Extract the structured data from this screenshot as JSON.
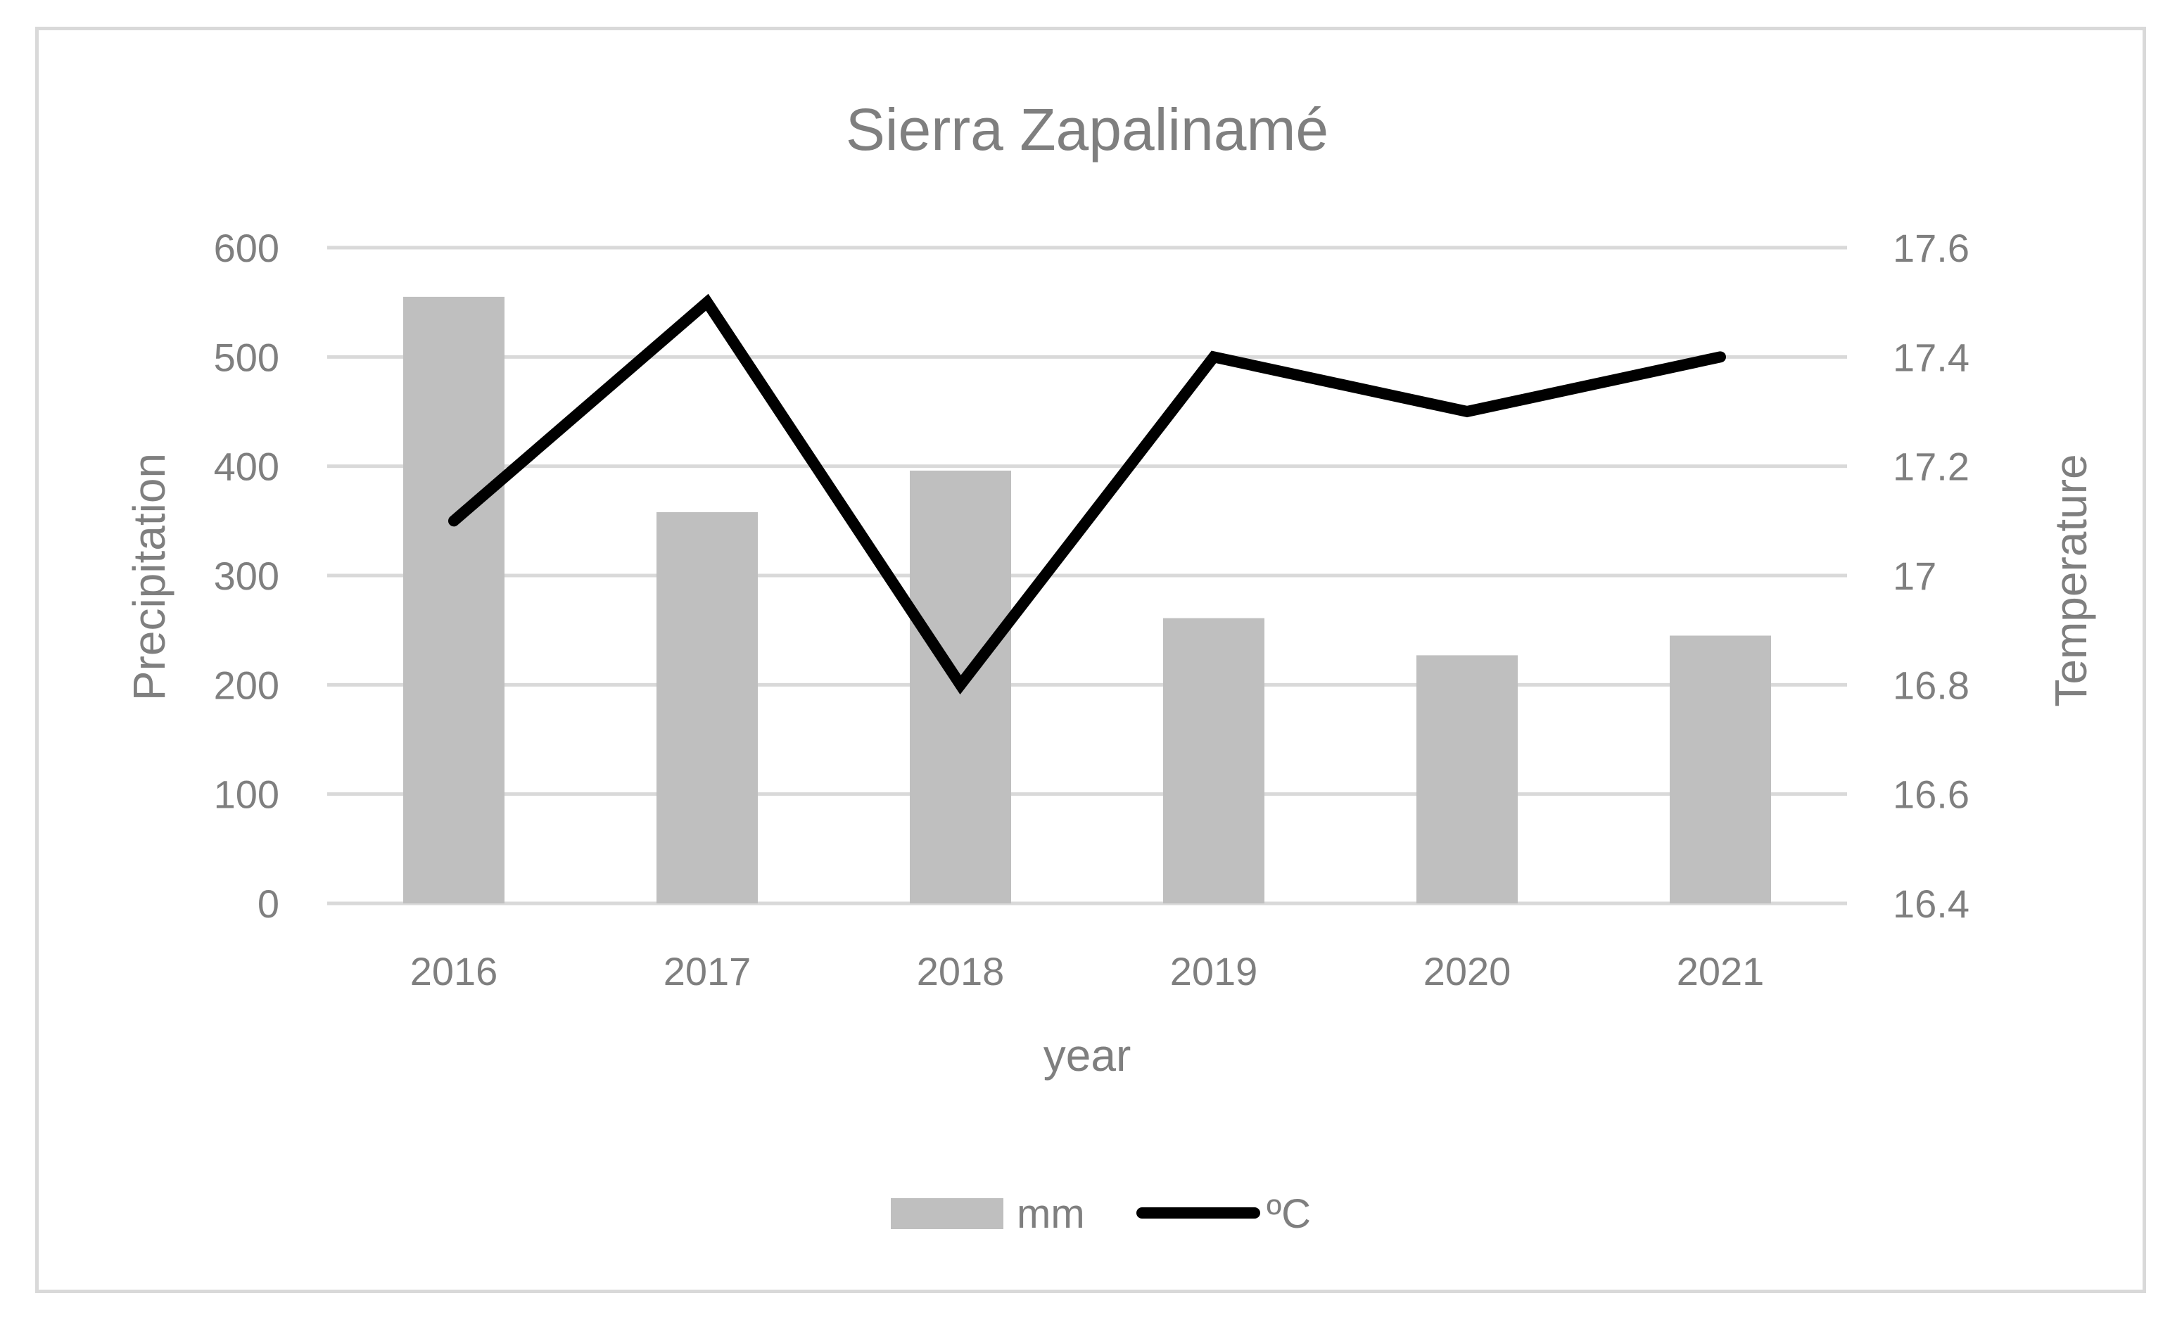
{
  "chart_data": {
    "type": "bar",
    "title": "Sierra Zapalinamé",
    "xlabel": "year",
    "ylabel": "Precipitation",
    "y2label": "Temperature",
    "categories": [
      "2016",
      "2017",
      "2018",
      "2019",
      "2020",
      "2021"
    ],
    "ylim": [
      0,
      600
    ],
    "y_ticks": [
      "0",
      "100",
      "200",
      "300",
      "400",
      "500",
      "600"
    ],
    "y2lim": [
      16.4,
      17.6
    ],
    "y2_ticks": [
      "16.4",
      "16.6",
      "16.8",
      "17",
      "17.2",
      "17.4",
      "17.6"
    ],
    "grid": true,
    "legend_position": "bottom",
    "series": [
      {
        "name": "mm",
        "type": "bar",
        "axis": "left",
        "color": "#bfbfbf",
        "values": [
          555,
          358,
          396,
          261,
          227,
          245
        ]
      },
      {
        "name": "ºC",
        "type": "line",
        "axis": "right",
        "color": "#000000",
        "values": [
          17.1,
          17.5,
          16.8,
          17.4,
          17.3,
          17.4
        ]
      }
    ],
    "colors": {
      "text": "#7f7f7f",
      "grid": "#d9d9d9",
      "frame": "#d9d9d9"
    }
  }
}
